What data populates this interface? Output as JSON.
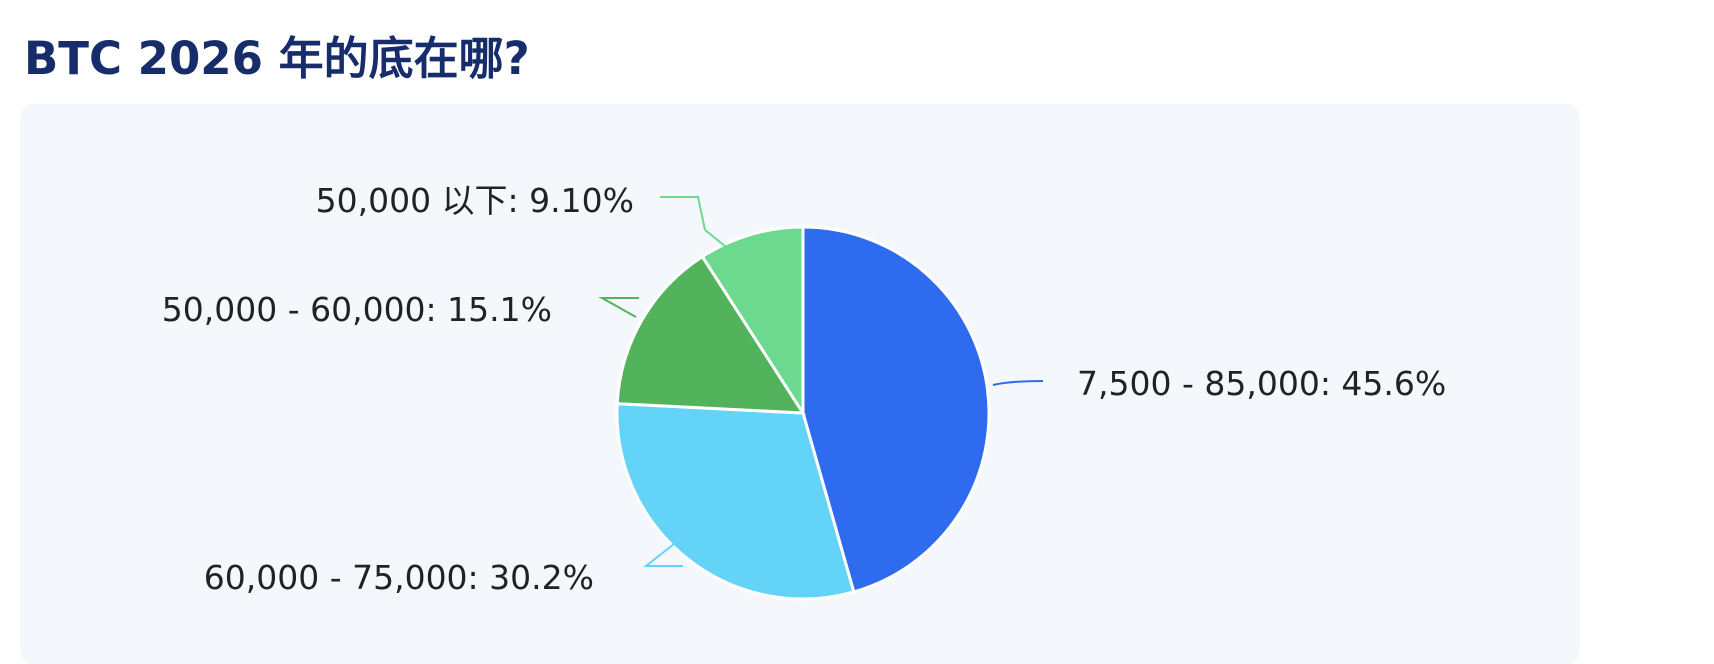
{
  "chart_data": {
    "type": "pie",
    "title": "BTC 2026 年的底在哪?",
    "start_angle": "top",
    "direction": "clockwise",
    "slices": [
      {
        "label": "7,500 - 85,000: 45.6%",
        "category": "7,500 - 85,000",
        "value": 45.6,
        "color": "#2f6bef",
        "label_color": "#d4732a"
      },
      {
        "label": "60,000 - 75,000: 30.2%",
        "category": "60,000 - 75,000",
        "value": 30.2,
        "color": "#63d4f7",
        "label_color": "#222222"
      },
      {
        "label": "50,000 - 60,000: 15.1%",
        "category": "50,000 - 60,000",
        "value": 15.1,
        "color": "#52b35c",
        "label_color": "#222222"
      },
      {
        "label": "50,000 以下: 9.10%",
        "category": "50,000 以下",
        "value": 9.1,
        "color": "#6cd98e",
        "label_color": "#222222"
      }
    ]
  }
}
